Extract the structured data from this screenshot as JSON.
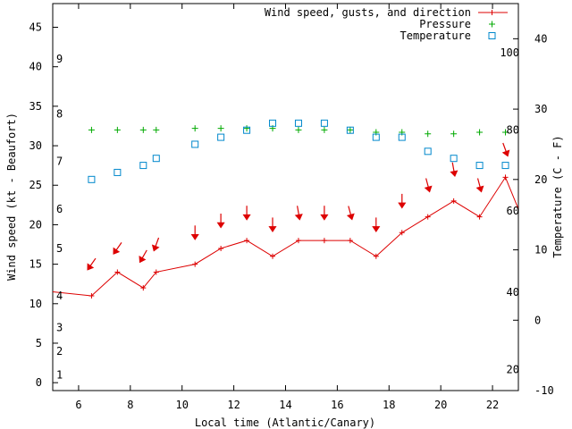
{
  "chart_data": {
    "type": "line",
    "xlabel": "Local time (Atlantic/Canary)",
    "ylabel_left": "Wind speed (kt - Beaufort)",
    "ylabel_right": "Temperature (C - F)",
    "xlim": [
      5,
      23
    ],
    "ylim_left": [
      -1,
      48
    ],
    "ylim_right": [
      -10,
      45
    ],
    "x_ticks": [
      6,
      8,
      10,
      12,
      14,
      16,
      18,
      20,
      22
    ],
    "y_ticks_left": [
      0,
      5,
      10,
      15,
      20,
      25,
      30,
      35,
      40,
      45
    ],
    "y_ticks_right": [
      -10,
      0,
      10,
      20,
      30,
      40
    ],
    "beaufort_labels": [
      {
        "text": "1",
        "y": 1
      },
      {
        "text": "2",
        "y": 4
      },
      {
        "text": "3",
        "y": 7
      },
      {
        "text": "4",
        "y": 11
      },
      {
        "text": "5",
        "y": 17
      },
      {
        "text": "6",
        "y": 22
      },
      {
        "text": "7",
        "y": 28
      },
      {
        "text": "8",
        "y": 34
      },
      {
        "text": "9",
        "y": 41
      }
    ],
    "fahrenheit_labels": [
      {
        "text": "20",
        "y": -7
      },
      {
        "text": "40",
        "y": 4
      },
      {
        "text": "60",
        "y": 15.5
      },
      {
        "text": "80",
        "y": 27
      },
      {
        "text": "100",
        "y": 38
      }
    ],
    "legend": [
      {
        "label": "Wind speed, gusts, and direction",
        "color": "#dd0000",
        "marker": "line-plus"
      },
      {
        "label": "Pressure",
        "color": "#00aa00",
        "marker": "plus"
      },
      {
        "label": "Temperature",
        "color": "#0088cc",
        "marker": "square"
      }
    ],
    "series": [
      {
        "name": "Wind speed",
        "color": "#dd0000",
        "x": [
          5,
          6.5,
          7.5,
          8.5,
          9,
          10.5,
          11.5,
          12.5,
          13.5,
          14.5,
          15.5,
          16.5,
          17.5,
          18.5,
          19.5,
          20.5,
          21.5,
          22.5,
          23
        ],
        "y": [
          11.5,
          11,
          14,
          12,
          14,
          15,
          17,
          18,
          16,
          18,
          18,
          18,
          16,
          19,
          21,
          23,
          21,
          26,
          22
        ]
      },
      {
        "name": "Pressure",
        "color": "#00aa00",
        "x": [
          6.5,
          7.5,
          8.5,
          9,
          10.5,
          11.5,
          12.5,
          13.5,
          14.5,
          15.5,
          16.5,
          17.5,
          18.5,
          19.5,
          20.5,
          21.5,
          22.5
        ],
        "y": [
          32,
          32,
          32,
          32,
          32.2,
          32.2,
          32.2,
          32.2,
          32,
          32,
          32,
          31.7,
          31.7,
          31.5,
          31.5,
          31.7,
          31.7
        ]
      },
      {
        "name": "Temperature",
        "color": "#0088cc",
        "x": [
          6.5,
          7.5,
          8.5,
          9,
          10.5,
          11.5,
          12.5,
          13.5,
          14.5,
          15.5,
          16.5,
          17.5,
          18.5,
          19.5,
          20.5,
          21.5,
          22.5
        ],
        "y": [
          20,
          21,
          22,
          23,
          25,
          26,
          27,
          28,
          28,
          28,
          27,
          26,
          26,
          24,
          23,
          22,
          22
        ]
      }
    ],
    "direction_arrows": [
      {
        "x": 6.5,
        "y": 15,
        "angle": 35
      },
      {
        "x": 7.5,
        "y": 17,
        "angle": 35
      },
      {
        "x": 8.5,
        "y": 16,
        "angle": 30
      },
      {
        "x": 9,
        "y": 17.5,
        "angle": 20
      },
      {
        "x": 10.5,
        "y": 19,
        "angle": 0
      },
      {
        "x": 11.5,
        "y": 20.5,
        "angle": 0
      },
      {
        "x": 12.5,
        "y": 21.5,
        "angle": 0
      },
      {
        "x": 13.5,
        "y": 20,
        "angle": 0
      },
      {
        "x": 14.5,
        "y": 21.5,
        "angle": -10
      },
      {
        "x": 15.5,
        "y": 21.5,
        "angle": 0
      },
      {
        "x": 16.5,
        "y": 21.5,
        "angle": -15
      },
      {
        "x": 17.5,
        "y": 20,
        "angle": 0
      },
      {
        "x": 18.5,
        "y": 23,
        "angle": 0
      },
      {
        "x": 19.5,
        "y": 25,
        "angle": -15
      },
      {
        "x": 20.5,
        "y": 27,
        "angle": -10
      },
      {
        "x": 21.5,
        "y": 25,
        "angle": -15
      },
      {
        "x": 22.5,
        "y": 29.5,
        "angle": -20
      }
    ]
  }
}
